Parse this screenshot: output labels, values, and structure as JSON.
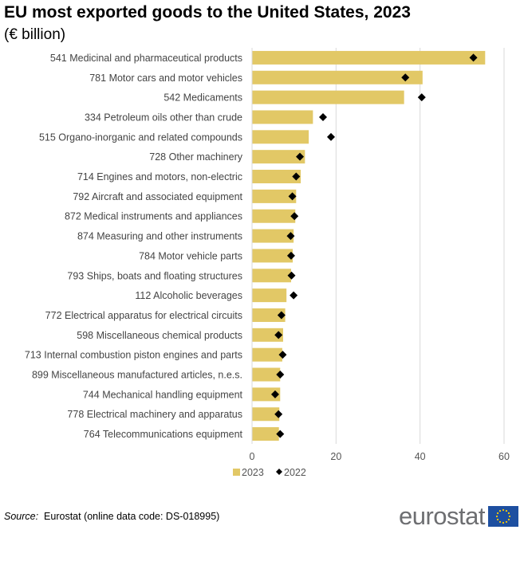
{
  "title": "EU most exported goods to the United States, 2023",
  "subtitle": "(€ billion)",
  "source_label": "Source:",
  "source_text": "Eurostat (online data code: DS-018995)",
  "logo_text": "eurostat",
  "colors": {
    "bar_2023": "#e2c866",
    "marker_2022": "#000000",
    "grid": "#d9d9d9",
    "eu_flag_blue": "#1d4fa0",
    "eu_flag_stars": "#ffcc00"
  },
  "chart_data": {
    "type": "bar",
    "orientation": "horizontal",
    "categories": [
      "541 Medicinal and pharmaceutical products",
      "781 Motor cars and motor vehicles",
      "542 Medicaments",
      "334 Petroleum oils other than crude",
      "515 Organo-inorganic and related compounds",
      "728 Other machinery",
      "714 Engines and motors, non-electric",
      "792 Aircraft and associated equipment",
      "872 Medical instruments and appliances",
      "874 Measuring and other instruments",
      "784 Motor vehicle parts",
      "793 Ships, boats and floating structures",
      "112 Alcoholic beverages",
      "772 Electrical apparatus for electrical circuits",
      "598 Miscellaneous chemical products",
      "713 Internal combustion piston engines and parts",
      "899 Miscellaneous manufactured articles, n.e.s.",
      "744 Mechanical handling equipment",
      "778 Electrical machinery and apparatus",
      "764 Telecommunications equipment"
    ],
    "series": [
      {
        "name": "2023",
        "mark": "bar",
        "values": [
          55.5,
          40.6,
          36.2,
          14.5,
          13.5,
          12.6,
          11.6,
          10.5,
          10.3,
          9.9,
          9.7,
          9.3,
          8.2,
          7.9,
          7.4,
          7.2,
          6.7,
          6.7,
          6.5,
          6.4
        ]
      },
      {
        "name": "2022",
        "mark": "diamond",
        "values": [
          52.7,
          36.5,
          40.4,
          16.9,
          18.8,
          11.4,
          10.5,
          9.6,
          10.1,
          9.2,
          9.3,
          9.4,
          9.9,
          7.0,
          6.3,
          7.3,
          6.7,
          5.5,
          6.3,
          6.7
        ]
      }
    ],
    "xlim": [
      0,
      60
    ],
    "xticks": [
      "0",
      "20",
      "40",
      "60"
    ],
    "grid": true,
    "legend_position": "bottom"
  }
}
